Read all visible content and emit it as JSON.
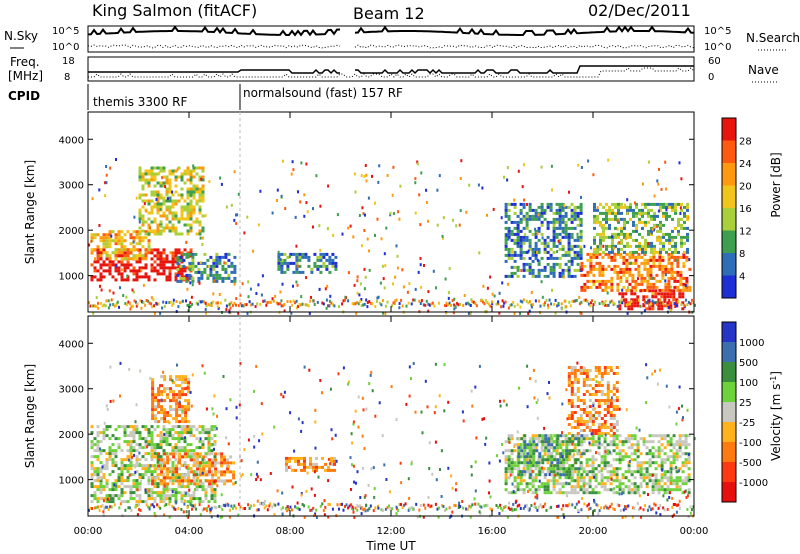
{
  "header": {
    "station": "King Salmon (fitACF)",
    "beam": "Beam 12",
    "date": "02/Dec/2011"
  },
  "noise_panel": {
    "left_label": "N.Sky",
    "right_label": "N.Search",
    "left_ticks": [
      "10^5",
      "10^0"
    ],
    "right_ticks": [
      "10^5",
      "10^0"
    ]
  },
  "freq_panel": {
    "left_label_line1": "Freq.",
    "left_label_line2": "[MHz]",
    "right_label": "Nave",
    "left_ticks": [
      "18",
      "8"
    ],
    "right_ticks": [
      "60",
      "0"
    ]
  },
  "cpid": {
    "label": "CPID",
    "segments": [
      {
        "text": "themis 3300 RF",
        "start_hour": 0
      },
      {
        "text": "normalsound (fast) 157 RF",
        "start_hour": 6
      }
    ]
  },
  "chart_data": [
    {
      "type": "heatmap",
      "name": "power",
      "ylabel": "Slant Range [km]",
      "xlabel": "",
      "xlim": [
        0,
        24
      ],
      "ylim": [
        200,
        4600
      ],
      "yticks": [
        "1000",
        "2000",
        "3000",
        "4000"
      ],
      "colorbar": {
        "label": "Power [dB]",
        "ticks": [
          "28",
          "24",
          "20",
          "16",
          "12",
          "8",
          "4"
        ],
        "colors": [
          "#e8150f",
          "#ff5a10",
          "#ff9a10",
          "#f2c51c",
          "#a9cf3a",
          "#3e9f50",
          "#2f6db8",
          "#1f2fd6"
        ]
      },
      "regions": [
        {
          "x0": 0.1,
          "x1": 4.1,
          "r0": 900,
          "r1": 1600,
          "level": 0
        },
        {
          "x0": 0.1,
          "x1": 2.5,
          "r0": 1400,
          "r1": 2000,
          "level": 3
        },
        {
          "x0": 2.0,
          "x1": 4.5,
          "r0": 1900,
          "r1": 3400,
          "level": 4
        },
        {
          "x0": 3.5,
          "x1": 5.8,
          "r0": 900,
          "r1": 1500,
          "level": 6
        },
        {
          "x0": 7.5,
          "x1": 9.8,
          "r0": 1100,
          "r1": 1500,
          "level": 6
        },
        {
          "x0": 16.5,
          "x1": 19.5,
          "r0": 1000,
          "r1": 2600,
          "level": 6
        },
        {
          "x0": 19.5,
          "x1": 23.8,
          "r0": 700,
          "r1": 1500,
          "level": 2
        },
        {
          "x0": 21.0,
          "x1": 23.5,
          "r0": 300,
          "r1": 700,
          "level": 0
        },
        {
          "x0": 20.0,
          "x1": 23.8,
          "r0": 1500,
          "r1": 2600,
          "level": 5
        }
      ]
    },
    {
      "type": "heatmap",
      "name": "velocity",
      "ylabel": "Slant Range [km]",
      "xlabel": "Time UT",
      "xlim": [
        0,
        24
      ],
      "ylim": [
        200,
        4600
      ],
      "xticks": [
        "00:00",
        "04:00",
        "08:00",
        "12:00",
        "16:00",
        "20:00",
        "00:00"
      ],
      "yticks": [
        "1000",
        "2000",
        "3000",
        "4000"
      ],
      "colorbar": {
        "label": "Velocity [m s^-1]",
        "ticks": [
          "1000",
          "500",
          "100",
          "25",
          "-25",
          "-100",
          "-500",
          "-1000"
        ],
        "colors": [
          "#2435c8",
          "#3d6fb0",
          "#3a8f3e",
          "#6ed23a",
          "#c8c8c0",
          "#ffb21c",
          "#ff7a10",
          "#ff3a10",
          "#e80f0f"
        ]
      },
      "regions": [
        {
          "x0": 0.1,
          "x1": 5.0,
          "r0": 500,
          "r1": 2200,
          "level": 4
        },
        {
          "x0": 2.5,
          "x1": 5.8,
          "r0": 900,
          "r1": 1600,
          "level": 6
        },
        {
          "x0": 2.5,
          "x1": 4.0,
          "r0": 2300,
          "r1": 3300,
          "level": 6
        },
        {
          "x0": 7.8,
          "x1": 9.8,
          "r0": 1200,
          "r1": 1500,
          "level": 6
        },
        {
          "x0": 16.5,
          "x1": 23.8,
          "r0": 700,
          "r1": 2000,
          "level": 4
        },
        {
          "x0": 17.0,
          "x1": 19.5,
          "r0": 1100,
          "r1": 2000,
          "level": 3
        },
        {
          "x0": 19.0,
          "x1": 21.0,
          "r0": 2000,
          "r1": 3500,
          "level": 6
        }
      ]
    }
  ]
}
